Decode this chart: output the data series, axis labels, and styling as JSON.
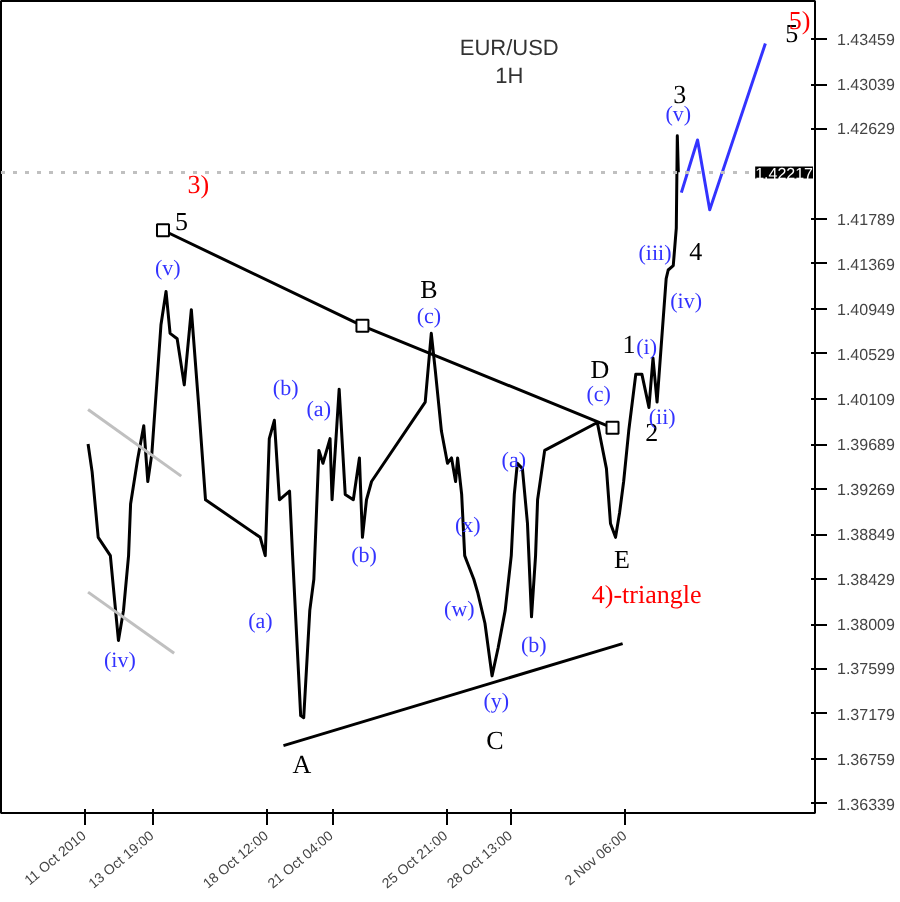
{
  "chart_data": {
    "type": "line",
    "title": "EUR/USD",
    "subtitle": "1H",
    "xlim": [
      "2010-10-07T13:00",
      "2010-11-10T01:00"
    ],
    "ylim": [
      1.36253,
      1.43815
    ],
    "xticks": [
      {
        "value": "2010-10-11T00:00",
        "label": "11 Oct 2010"
      },
      {
        "value": "2010-10-13T19:00",
        "label": "13 Oct 19:00"
      },
      {
        "value": "2010-10-18T12:00",
        "label": "18 Oct 12:00"
      },
      {
        "value": "2010-10-21T04:00",
        "label": "21 Oct 04:00"
      },
      {
        "value": "2010-10-25T21:00",
        "label": "25 Oct 21:00"
      },
      {
        "value": "2010-10-28T13:00",
        "label": "28 Oct 13:00"
      },
      {
        "value": "2010-11-02T06:00",
        "label": "2 Nov 06:00"
      }
    ],
    "yticks": [
      1.36339,
      1.36759,
      1.37179,
      1.37599,
      1.38009,
      1.38429,
      1.38849,
      1.39269,
      1.39689,
      1.40109,
      1.40529,
      1.40949,
      1.41369,
      1.41789,
      1.42629,
      1.43039,
      1.43459
    ],
    "series": [
      {
        "color": "#000000",
        "x": [
          "2010-10-11T03:00",
          "2010-10-11T07:00",
          "2010-10-11T13:00",
          "2010-10-12T01:00",
          "2010-10-12T09:00",
          "2010-10-12T14:00",
          "2010-10-12T19:00",
          "2010-10-12T21:00",
          "2010-10-13T04:00",
          "2010-10-13T10:00",
          "2010-10-13T14:00",
          "2010-10-13T18:00",
          "2010-10-14T03:00",
          "2010-10-14T08:00",
          "2010-10-14T12:00",
          "2010-10-14T19:00",
          "2010-10-15T02:00",
          "2010-10-15T09:00",
          "2010-10-15T16:00",
          "2010-10-15T23:00",
          "2010-10-18T05:00",
          "2010-10-18T10:00",
          "2010-10-18T14:00",
          "2010-10-18T19:00",
          "2010-10-19T00:00",
          "2010-10-19T10:00",
          "2010-10-19T13:00",
          "2010-10-19T21:00",
          "2010-10-20T00:00",
          "2010-10-20T06:00",
          "2010-10-20T10:00",
          "2010-10-20T15:00",
          "2010-10-20T19:00",
          "2010-10-21T02:00",
          "2010-10-21T04:00",
          "2010-10-21T11:00",
          "2010-10-21T17:00",
          "2010-10-22T01:00",
          "2010-10-22T07:00",
          "2010-10-22T10:00",
          "2010-10-22T14:00",
          "2010-10-22T19:00",
          "2010-10-25T00:00",
          "2010-10-25T06:00",
          "2010-10-25T10:00",
          "2010-10-25T16:00",
          "2010-10-25T22:00",
          "2010-10-26T02:00",
          "2010-10-26T06:00",
          "2010-10-26T08:00",
          "2010-10-26T12:00",
          "2010-10-26T15:00",
          "2010-10-26T17:00",
          "2010-10-27T00:00",
          "2010-10-27T04:00",
          "2010-10-27T11:00",
          "2010-10-27T18:00",
          "2010-10-28T00:00",
          "2010-10-28T07:00",
          "2010-10-28T13:00",
          "2010-10-28T16:00",
          "2010-10-28T19:00",
          "2010-10-29T00:00",
          "2010-10-29T05:00",
          "2010-10-29T09:00",
          "2010-10-29T13:00",
          "2010-10-29T15:00",
          "2010-10-29T22:00",
          "2010-11-01T02:00",
          "2010-11-01T11:00",
          "2010-11-01T15:00",
          "2010-11-01T20:00",
          "2010-11-02T00:00",
          "2010-11-02T04:00",
          "2010-11-02T09:00",
          "2010-11-02T16:00",
          "2010-11-02T22:00",
          "2010-11-03T05:00",
          "2010-11-03T09:00",
          "2010-11-03T13:00",
          "2010-11-03T18:00",
          "2010-11-03T22:00",
          "2010-11-04T00:00",
          "2010-11-04T05:00",
          "2010-11-04T08:00",
          "2010-11-04T09:00",
          "2010-11-04T10:00"
        ],
        "values": [
          1.3969,
          1.3943,
          1.3882,
          1.3865,
          1.3786,
          1.3814,
          1.3865,
          1.3913,
          1.3955,
          1.3986,
          1.3934,
          1.396,
          1.408,
          1.4111,
          1.4072,
          1.4067,
          1.4024,
          1.4094,
          1.4008,
          1.3917,
          1.3882,
          1.3865,
          1.3974,
          1.3991,
          1.3917,
          1.3925,
          1.3865,
          1.3716,
          1.3714,
          1.3814,
          1.3843,
          1.3963,
          1.3951,
          1.3974,
          1.3917,
          1.402,
          1.3922,
          1.3917,
          1.3956,
          1.3882,
          1.3917,
          1.3934,
          1.4008,
          1.4072,
          1.4037,
          1.3981,
          1.3951,
          1.3956,
          1.3934,
          1.3956,
          1.3922,
          1.3865,
          1.386,
          1.3843,
          1.383,
          1.3802,
          1.3753,
          1.3779,
          1.3814,
          1.3865,
          1.3922,
          1.3951,
          1.3946,
          1.3895,
          1.3808,
          1.3865,
          1.3917,
          1.3963,
          1.3989,
          1.3946,
          1.3895,
          1.3882,
          1.3905,
          1.3934,
          1.3981,
          1.4034,
          1.4034,
          1.4003,
          1.4049,
          1.4008,
          1.4072,
          1.4123,
          1.4131,
          1.4135,
          1.417,
          1.4256,
          1.4222
        ]
      },
      {
        "color": "#3333ff",
        "x": [
          "2010-11-04T13:00",
          "2010-11-05T05:00",
          "2010-11-05T17:00",
          "2010-11-08T00:00"
        ],
        "values": [
          1.4203,
          1.4252,
          1.4187,
          1.4342
        ]
      },
      {
        "color": "#000000",
        "marker": "square",
        "x": [
          "2010-10-14T05:00",
          "2010-10-22T10:00",
          "2010-11-01T17:00"
        ],
        "values": [
          1.4168,
          1.4079,
          1.3984
        ]
      },
      {
        "color": "#000000",
        "x": [
          "2010-10-19T04:00",
          "2010-11-02T03:00"
        ],
        "values": [
          1.3688,
          1.3783
        ]
      },
      {
        "color": "#c0c0c0",
        "x": [
          "2010-10-11T03:00",
          "2010-10-14T23:00"
        ],
        "values": [
          1.4001,
          1.3939
        ]
      },
      {
        "color": "#c0c0c0",
        "x": [
          "2010-10-11T03:00",
          "2010-10-14T16:00"
        ],
        "values": [
          1.3831,
          1.3774
        ]
      }
    ],
    "ref_lines": [
      {
        "axis": "y",
        "value": 1.42217,
        "label": "1.42217",
        "color": "#c0c0c0",
        "line_style": "dotted"
      }
    ],
    "annotations": [
      "3)",
      "5",
      "(v)",
      "(b)",
      "(a)",
      "B",
      "(c)",
      "D",
      "(c)",
      "1",
      "(i)",
      "2",
      "(ii)",
      "(iv)",
      "(iii)",
      "3",
      "(v)",
      "4",
      "5",
      "5)",
      "(a)",
      "(x)",
      "(b)",
      "E",
      "(iv)",
      "(a)",
      "A",
      "(w)",
      "(y)",
      "C",
      "(b)",
      "4)-triangle"
    ]
  }
}
